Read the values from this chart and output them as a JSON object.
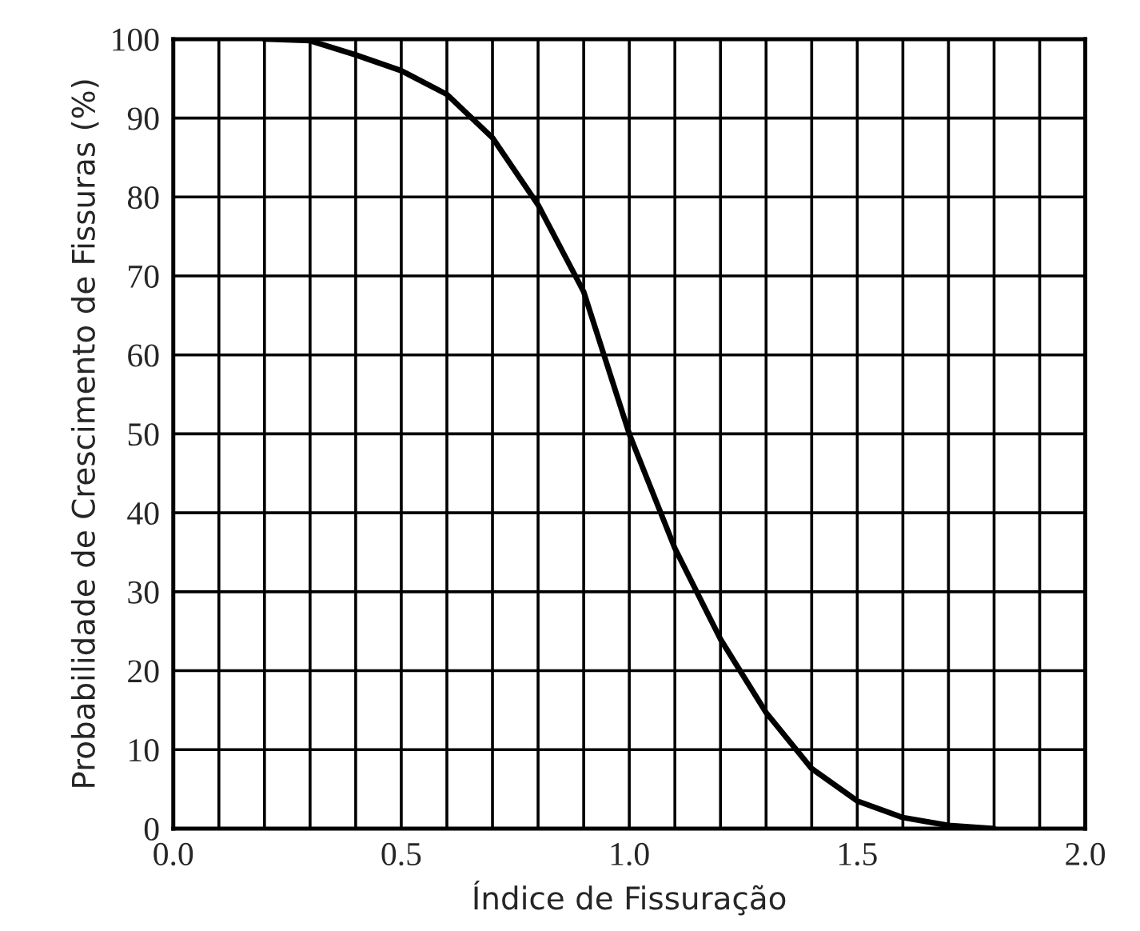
{
  "chart_data": {
    "type": "line",
    "xlabel": "Índice de Fissuração",
    "ylabel": "Probabilidade de Crescimento de Fissuras (%)",
    "x": [
      0.2,
      0.3,
      0.4,
      0.5,
      0.6,
      0.7,
      0.8,
      0.9,
      1.0,
      1.1,
      1.2,
      1.3,
      1.4,
      1.5,
      1.6,
      1.7,
      1.8
    ],
    "series": [
      {
        "color": "#000000",
        "values": [
          100,
          99.8,
          98,
          96,
          93,
          87.5,
          79,
          68,
          50,
          35.5,
          24,
          14.7,
          7.6,
          3.5,
          1.4,
          0.4,
          0
        ]
      }
    ],
    "xlim": [
      0.0,
      2.0
    ],
    "ylim": [
      0,
      100
    ],
    "xticks": [
      {
        "value": 0.0,
        "label": "0.0"
      },
      0.5,
      {
        "value": 1.0,
        "label": "1.0"
      },
      1.5,
      {
        "value": 2.0,
        "label": "2.0"
      }
    ],
    "yticks": [
      0,
      10,
      20,
      30,
      40,
      50,
      60,
      70,
      80,
      90,
      100
    ],
    "grid": true,
    "marker": "none",
    "line_style": "solid",
    "legend": false
  }
}
